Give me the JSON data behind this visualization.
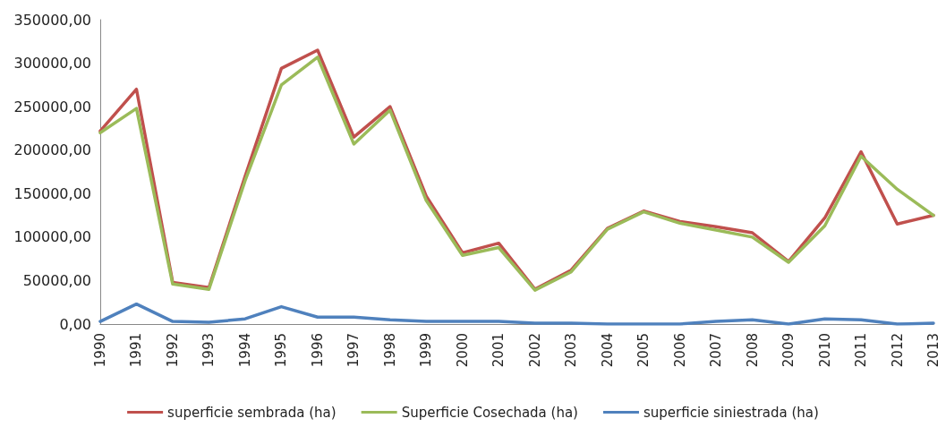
{
  "chart_data": {
    "type": "line",
    "categories": [
      "1990",
      "1991",
      "1992",
      "1993",
      "1994",
      "1995",
      "1996",
      "1997",
      "1998",
      "1999",
      "2000",
      "2001",
      "2002",
      "2003",
      "2004",
      "2005",
      "2006",
      "2007",
      "2008",
      "2009",
      "2010",
      "2011",
      "2012",
      "2013"
    ],
    "series": [
      {
        "name": "superficie sembrada (ha)",
        "color": "#c0504d",
        "values": [
          222000,
          270000,
          48000,
          42000,
          170000,
          294000,
          315000,
          215000,
          250000,
          147000,
          82000,
          93000,
          40000,
          62000,
          110000,
          130000,
          118000,
          112000,
          105000,
          72000,
          122000,
          198000,
          115000,
          125000
        ]
      },
      {
        "name": "Superficie Cosechada (ha)",
        "color": "#9bbb59",
        "values": [
          220000,
          248000,
          46000,
          40000,
          165000,
          275000,
          307000,
          207000,
          246000,
          142000,
          79000,
          88000,
          39000,
          60000,
          109000,
          129000,
          116000,
          108000,
          100000,
          71000,
          113000,
          193000,
          155000,
          125000
        ]
      },
      {
        "name": "superficie siniestrada (ha)",
        "color": "#4f81bd",
        "values": [
          3000,
          23000,
          3000,
          2000,
          6000,
          20000,
          8000,
          8000,
          5000,
          3000,
          3000,
          3000,
          1000,
          1000,
          0,
          0,
          0,
          3000,
          5000,
          0,
          6000,
          5000,
          0,
          1000
        ]
      }
    ],
    "ylim": [
      0,
      350000
    ],
    "yticks": [
      {
        "value": 0,
        "label": "0,00"
      },
      {
        "value": 50000,
        "label": "50000,00"
      },
      {
        "value": 100000,
        "label": "100000,00"
      },
      {
        "value": 150000,
        "label": "150000,00"
      },
      {
        "value": 200000,
        "label": "200000,00"
      },
      {
        "value": 250000,
        "label": "250000,00"
      },
      {
        "value": 300000,
        "label": "300000,00"
      },
      {
        "value": 350000,
        "label": "350000,00"
      }
    ],
    "grid": false,
    "legend": "bottom",
    "marker": "none",
    "line_style": "solid"
  }
}
